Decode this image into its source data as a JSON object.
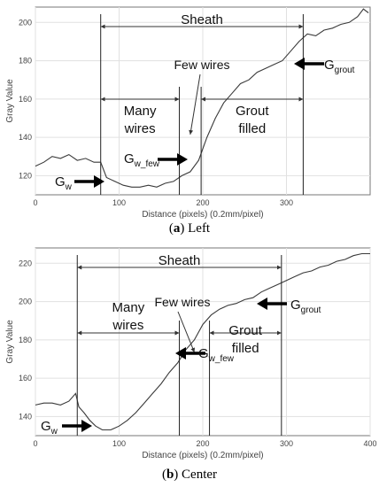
{
  "chart_data": [
    {
      "type": "line",
      "xlabel": "Distance (pixels) (0.2mm/pixel)",
      "ylabel": "Gray Value",
      "xlim": [
        0,
        400
      ],
      "ylim": [
        110,
        208
      ],
      "xticks": [
        0,
        100,
        200,
        300
      ],
      "yticks": [
        120,
        140,
        160,
        180,
        200
      ],
      "grid": true,
      "caption_letter": "a",
      "caption_rest": ") Left",
      "series": [
        {
          "x": [
            0,
            10,
            20,
            30,
            40,
            50,
            60,
            70,
            78,
            85,
            95,
            105,
            115,
            125,
            135,
            145,
            155,
            165,
            175,
            185,
            195,
            205,
            215,
            225,
            235,
            245,
            255,
            265,
            275,
            285,
            295,
            305,
            315,
            325,
            335,
            345,
            355,
            365,
            375,
            385,
            392,
            398
          ],
          "y": [
            125,
            127,
            130,
            129,
            131,
            128,
            129,
            127,
            127,
            119,
            117,
            115,
            114,
            114,
            115,
            114,
            116,
            117,
            120,
            122,
            128,
            140,
            150,
            158,
            163,
            168,
            170,
            174,
            176,
            178,
            180,
            185,
            190,
            194,
            193,
            196,
            197,
            199,
            200,
            203,
            207,
            205
          ]
        }
      ],
      "annotations": {
        "sheath": "Sheath",
        "many_wires": [
          "Many",
          "wires"
        ],
        "few_wires": "Few wires",
        "grout_filled": [
          "Grout",
          "filled"
        ],
        "g_w": "G",
        "g_w_sub": "w",
        "g_wfew": "G",
        "g_wfew_sub": "w_few",
        "g_grout": "G",
        "g_grout_sub": "grout"
      },
      "markers": {
        "start": 78,
        "mid1": 172,
        "mid2": 198,
        "end": 320
      }
    },
    {
      "type": "line",
      "xlabel": "Distance (pixels) (0.2mm/pixel)",
      "ylabel": "Gray Value",
      "xlim": [
        0,
        400
      ],
      "ylim": [
        130,
        228
      ],
      "xticks": [
        0,
        100,
        200,
        300,
        400
      ],
      "yticks": [
        140,
        160,
        180,
        200,
        220
      ],
      "grid": true,
      "caption_letter": "b",
      "caption_rest": ") Center",
      "series": [
        {
          "x": [
            0,
            10,
            20,
            30,
            40,
            48,
            52,
            58,
            65,
            72,
            80,
            90,
            100,
            110,
            120,
            130,
            140,
            150,
            160,
            170,
            180,
            190,
            200,
            210,
            220,
            230,
            240,
            250,
            260,
            270,
            280,
            290,
            300,
            310,
            320,
            330,
            340,
            350,
            360,
            370,
            380,
            390,
            400
          ],
          "y": [
            146,
            147,
            147,
            146,
            148,
            152,
            145,
            142,
            138,
            135,
            133,
            133,
            135,
            138,
            142,
            147,
            152,
            157,
            163,
            168,
            175,
            180,
            188,
            193,
            196,
            198,
            199,
            201,
            202,
            205,
            207,
            209,
            211,
            213,
            215,
            216,
            218,
            219,
            221,
            222,
            224,
            225,
            225
          ]
        }
      ],
      "annotations": {
        "sheath": "Sheath",
        "many_wires": [
          "Many",
          "wires"
        ],
        "few_wires": "Few wires",
        "grout_filled": [
          "Grout",
          "filled"
        ],
        "g_w": "G",
        "g_w_sub": "w",
        "g_wfew": "G",
        "g_wfew_sub": "w_few",
        "g_grout": "G",
        "g_grout_sub": "grout"
      },
      "markers": {
        "start": 50,
        "mid1": 172,
        "mid2": 208,
        "end": 294
      }
    }
  ]
}
